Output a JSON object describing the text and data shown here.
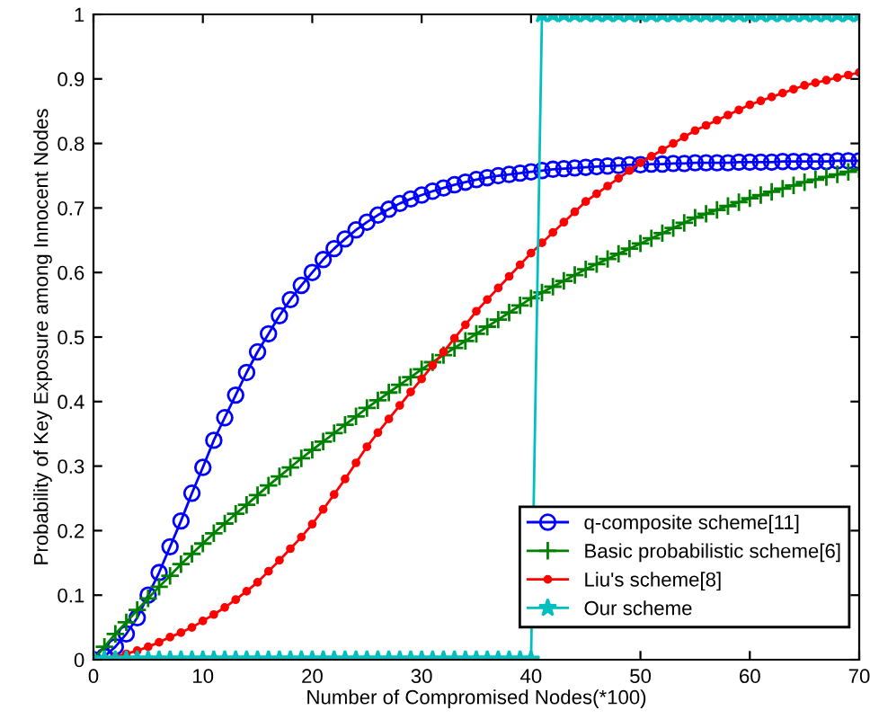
{
  "chart_data": {
    "type": "line",
    "xlabel": "Number of Compromised Nodes(*100)",
    "ylabel": "Probability of Key Exposure among Innocent Nodes",
    "x": [
      0,
      1,
      2,
      3,
      4,
      5,
      6,
      7,
      8,
      9,
      10,
      11,
      12,
      13,
      14,
      15,
      16,
      17,
      18,
      19,
      20,
      21,
      22,
      23,
      24,
      25,
      26,
      27,
      28,
      29,
      30,
      31,
      32,
      33,
      34,
      35,
      36,
      37,
      38,
      39,
      40,
      41,
      42,
      43,
      44,
      45,
      46,
      47,
      48,
      49,
      50,
      51,
      52,
      53,
      54,
      55,
      56,
      57,
      58,
      59,
      60,
      61,
      62,
      63,
      64,
      65,
      66,
      67,
      68,
      69,
      70
    ],
    "xlim": [
      0,
      70
    ],
    "xticks": [
      0,
      10,
      20,
      30,
      40,
      50,
      60,
      70
    ],
    "ylim": [
      0,
      1
    ],
    "yticks": [
      0,
      0.1,
      0.2,
      0.3,
      0.4,
      0.5,
      0.6,
      0.7,
      0.8,
      0.9,
      1
    ],
    "grid": false,
    "legend": "bottom right",
    "series": [
      {
        "name": "q-composite scheme[11]",
        "color": "#0000ff",
        "marker": "circle",
        "values": [
          0,
          0.005,
          0.02,
          0.04,
          0.065,
          0.1,
          0.135,
          0.175,
          0.215,
          0.258,
          0.298,
          0.34,
          0.375,
          0.41,
          0.445,
          0.477,
          0.505,
          0.533,
          0.558,
          0.58,
          0.6,
          0.62,
          0.637,
          0.652,
          0.666,
          0.678,
          0.689,
          0.698,
          0.707,
          0.714,
          0.72,
          0.726,
          0.731,
          0.736,
          0.74,
          0.744,
          0.747,
          0.75,
          0.752,
          0.754,
          0.756,
          0.758,
          0.76,
          0.761,
          0.762,
          0.763,
          0.764,
          0.765,
          0.766,
          0.767,
          0.767,
          0.768,
          0.768,
          0.769,
          0.769,
          0.77,
          0.77,
          0.77,
          0.77,
          0.771,
          0.771,
          0.771,
          0.771,
          0.772,
          0.772,
          0.772,
          0.772,
          0.772,
          0.773,
          0.773,
          0.773
        ]
      },
      {
        "name": "Basic probabilistic scheme[6]",
        "color": "#008000",
        "marker": "cross",
        "values": [
          0,
          0.02,
          0.04,
          0.058,
          0.077,
          0.095,
          0.113,
          0.13,
          0.148,
          0.164,
          0.18,
          0.196,
          0.211,
          0.226,
          0.24,
          0.255,
          0.27,
          0.284,
          0.298,
          0.312,
          0.325,
          0.338,
          0.351,
          0.364,
          0.377,
          0.39,
          0.402,
          0.414,
          0.426,
          0.438,
          0.45,
          0.461,
          0.472,
          0.483,
          0.494,
          0.505,
          0.516,
          0.527,
          0.538,
          0.549,
          0.56,
          0.569,
          0.578,
          0.587,
          0.596,
          0.605,
          0.613,
          0.621,
          0.629,
          0.637,
          0.645,
          0.653,
          0.661,
          0.669,
          0.677,
          0.685,
          0.691,
          0.697,
          0.703,
          0.709,
          0.715,
          0.72,
          0.725,
          0.73,
          0.735,
          0.74,
          0.744,
          0.748,
          0.752,
          0.756,
          0.76
        ]
      },
      {
        "name": "Liu's scheme[8]",
        "color": "#ff0000",
        "marker": "dot",
        "values": [
          0,
          0.002,
          0.005,
          0.009,
          0.014,
          0.02,
          0.027,
          0.035,
          0.042,
          0.05,
          0.06,
          0.07,
          0.081,
          0.093,
          0.106,
          0.12,
          0.137,
          0.154,
          0.172,
          0.19,
          0.21,
          0.233,
          0.256,
          0.28,
          0.305,
          0.33,
          0.352,
          0.373,
          0.394,
          0.415,
          0.435,
          0.456,
          0.477,
          0.498,
          0.519,
          0.54,
          0.558,
          0.576,
          0.594,
          0.612,
          0.63,
          0.646,
          0.662,
          0.678,
          0.694,
          0.71,
          0.722,
          0.734,
          0.746,
          0.758,
          0.77,
          0.78,
          0.79,
          0.8,
          0.81,
          0.82,
          0.828,
          0.836,
          0.844,
          0.852,
          0.86,
          0.866,
          0.872,
          0.878,
          0.884,
          0.89,
          0.894,
          0.898,
          0.902,
          0.906,
          0.91
        ]
      },
      {
        "name": "Our scheme",
        "color": "#00bfbf",
        "marker": "star",
        "values": [
          0,
          0,
          0,
          0,
          0,
          0,
          0,
          0,
          0,
          0,
          0,
          0,
          0,
          0,
          0,
          0,
          0,
          0,
          0,
          0,
          0,
          0,
          0,
          0,
          0,
          0,
          0,
          0,
          0,
          0,
          0,
          0,
          0,
          0,
          0,
          0,
          0,
          0,
          0,
          0,
          0,
          1,
          1,
          1,
          1,
          1,
          1,
          1,
          1,
          1,
          1,
          1,
          1,
          1,
          1,
          1,
          1,
          1,
          1,
          1,
          1,
          1,
          1,
          1,
          1,
          1,
          1,
          1,
          1,
          1,
          1
        ]
      }
    ]
  }
}
